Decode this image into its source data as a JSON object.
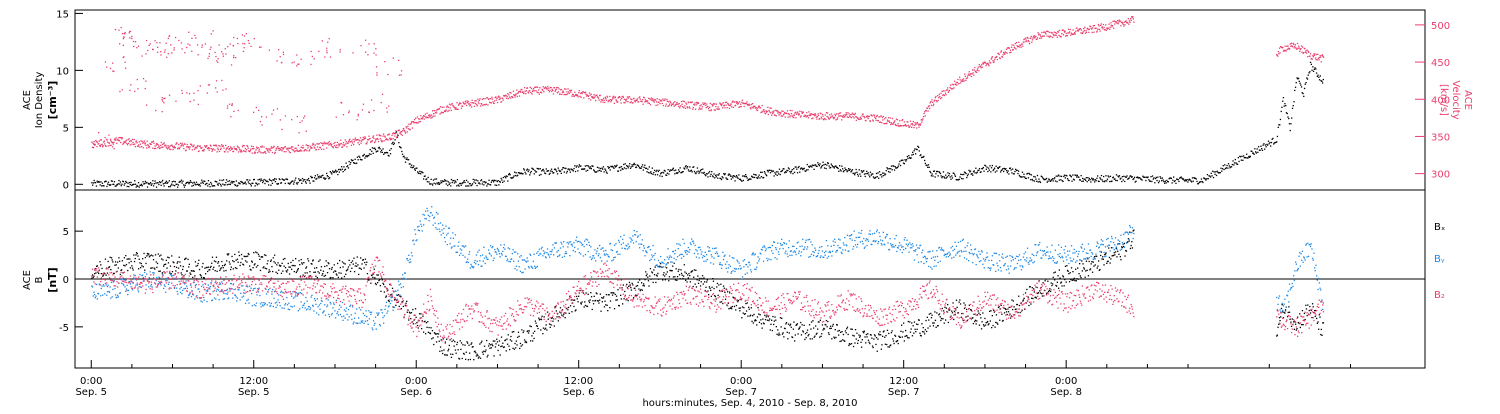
{
  "chart_data": [
    {
      "type": "scatter",
      "panel": "plasma",
      "ylabel_left": [
        "ACE",
        "Ion Density",
        "[cm⁻³]"
      ],
      "ylabel_right": [
        "ACE",
        "Velocity",
        "[km/s]"
      ],
      "ylim_left": [
        -0.5,
        15.3
      ],
      "yticks_left": [
        0,
        5,
        10,
        15
      ],
      "ylim_right": [
        278,
        520
      ],
      "yticks_right": [
        300,
        350,
        400,
        450,
        500
      ],
      "series": [
        {
          "color": "#000000",
          "axis": "left",
          "points": [
            [
              0,
              0.1
            ],
            [
              6,
              0.1
            ],
            [
              12,
              0.2
            ],
            [
              16,
              0.4
            ],
            [
              18,
              1.0
            ],
            [
              19,
              1.8
            ],
            [
              20,
              2.5
            ],
            [
              21,
              3.2
            ],
            [
              22,
              2.8
            ],
            [
              22.5,
              4.5
            ],
            [
              23,
              2.5
            ],
            [
              24,
              1.2
            ],
            [
              25,
              0.3
            ],
            [
              26,
              0.2
            ],
            [
              30,
              0.2
            ],
            [
              31,
              0.8
            ],
            [
              32,
              1.2
            ],
            [
              34,
              1.1
            ],
            [
              36,
              1.5
            ],
            [
              38,
              1.3
            ],
            [
              40,
              1.8
            ],
            [
              42,
              1.0
            ],
            [
              44,
              1.5
            ],
            [
              46,
              0.8
            ],
            [
              48,
              0.6
            ],
            [
              50,
              1.0
            ],
            [
              52,
              1.3
            ],
            [
              54,
              1.8
            ],
            [
              56,
              1.2
            ],
            [
              58,
              0.8
            ],
            [
              60,
              2.0
            ],
            [
              61,
              3.2
            ],
            [
              62,
              1.0
            ],
            [
              64,
              0.7
            ],
            [
              66,
              1.5
            ],
            [
              68,
              1.2
            ],
            [
              70,
              0.5
            ],
            [
              72,
              0.6
            ],
            [
              74,
              0.5
            ],
            [
              76,
              0.6
            ],
            [
              78,
              0.5
            ],
            [
              80,
              0.4
            ],
            [
              82,
              0.4
            ],
            [
              87.5,
              4.0
            ],
            [
              88,
              7.5
            ],
            [
              88.5,
              5.0
            ],
            [
              89,
              9.5
            ],
            [
              89.5,
              8.0
            ],
            [
              90,
              10.5
            ],
            [
              91,
              9.0
            ]
          ]
        },
        {
          "color": "#e8406e",
          "axis": "right",
          "points": [
            [
              0,
              340
            ],
            [
              2,
              345
            ],
            [
              4,
              340
            ],
            [
              6,
              338
            ],
            [
              8,
              335
            ],
            [
              10,
              335
            ],
            [
              12,
              333
            ],
            [
              14,
              333
            ],
            [
              16,
              336
            ],
            [
              18,
              340
            ],
            [
              20,
              345
            ],
            [
              21,
              348
            ],
            [
              22,
              350
            ],
            [
              23,
              357
            ],
            [
              24,
              372
            ],
            [
              26,
              388
            ],
            [
              28,
              395
            ],
            [
              30,
              400
            ],
            [
              32,
              412
            ],
            [
              34,
              413
            ],
            [
              36,
              408
            ],
            [
              38,
              400
            ],
            [
              40,
              400
            ],
            [
              42,
              397
            ],
            [
              44,
              393
            ],
            [
              46,
              390
            ],
            [
              48,
              395
            ],
            [
              50,
              385
            ],
            [
              52,
              380
            ],
            [
              54,
              378
            ],
            [
              56,
              378
            ],
            [
              58,
              375
            ],
            [
              60,
              368
            ],
            [
              61,
              365
            ],
            [
              62,
              395
            ],
            [
              64,
              425
            ],
            [
              66,
              448
            ],
            [
              68,
              470
            ],
            [
              70,
              487
            ],
            [
              72,
              490
            ],
            [
              74,
              495
            ],
            [
              76,
              503
            ],
            [
              77,
              508
            ],
            [
              87.5,
              462
            ],
            [
              88,
              470
            ],
            [
              89,
              472
            ],
            [
              90,
              460
            ],
            [
              91,
              455
            ]
          ]
        },
        {
          "color": "#e8406e",
          "axis": "right",
          "points": [
            [
              1,
              345
            ],
            [
              1.5,
              450
            ],
            [
              2,
              488
            ],
            [
              3,
              480
            ],
            [
              4,
              468
            ],
            [
              5,
              465
            ],
            [
              6,
              475
            ],
            [
              7,
              472
            ],
            [
              8,
              482
            ],
            [
              9,
              465
            ],
            [
              10,
              455
            ],
            [
              11,
              475
            ],
            [
              12,
              478
            ],
            [
              14,
              460
            ],
            [
              16,
              455
            ],
            [
              18,
              470
            ],
            [
              20,
              468
            ],
            [
              22,
              445
            ],
            [
              3,
              420
            ],
            [
              5,
              395
            ],
            [
              7,
              405
            ],
            [
              9,
              415
            ],
            [
              11,
              388
            ],
            [
              13,
              378
            ],
            [
              15,
              368
            ],
            [
              19,
              385
            ],
            [
              21,
              395
            ]
          ]
        }
      ]
    },
    {
      "type": "scatter",
      "panel": "magnetic-field",
      "ylabel": [
        "ACE",
        "B",
        "[nT]"
      ],
      "ylim": [
        -9.3,
        9.3
      ],
      "yticks": [
        -5,
        0,
        5
      ],
      "legend": [
        "Bₓ",
        "Bᵧ",
        "B₂"
      ],
      "series": [
        {
          "name": "Bx",
          "color": "#000000",
          "points": [
            [
              0,
              1.0
            ],
            [
              2,
              1.5
            ],
            [
              4,
              2.0
            ],
            [
              6,
              1.5
            ],
            [
              8,
              1.0
            ],
            [
              10,
              2.0
            ],
            [
              12,
              2.0
            ],
            [
              14,
              1.5
            ],
            [
              16,
              1.2
            ],
            [
              18,
              1.0
            ],
            [
              20,
              1.5
            ],
            [
              21,
              0.0
            ],
            [
              22,
              -1.5
            ],
            [
              23,
              -3.0
            ],
            [
              24,
              -4.0
            ],
            [
              25,
              -5.5
            ],
            [
              26,
              -7.0
            ],
            [
              28,
              -7.5
            ],
            [
              30,
              -7.0
            ],
            [
              32,
              -6.0
            ],
            [
              34,
              -4.0
            ],
            [
              36,
              -2.0
            ],
            [
              38,
              -2.5
            ],
            [
              40,
              -1.0
            ],
            [
              42,
              1.0
            ],
            [
              44,
              0.5
            ],
            [
              46,
              -1.0
            ],
            [
              48,
              -3.0
            ],
            [
              50,
              -4.5
            ],
            [
              52,
              -5.5
            ],
            [
              54,
              -5.0
            ],
            [
              56,
              -6.0
            ],
            [
              58,
              -6.5
            ],
            [
              60,
              -5.5
            ],
            [
              62,
              -4.5
            ],
            [
              64,
              -3.0
            ],
            [
              66,
              -4.5
            ],
            [
              68,
              -3.0
            ],
            [
              70,
              -1.0
            ],
            [
              72,
              0.5
            ],
            [
              74,
              1.5
            ],
            [
              76,
              3.0
            ],
            [
              77,
              4.5
            ],
            [
              87.5,
              -5.5
            ],
            [
              88,
              -3.0
            ],
            [
              89,
              -4.5
            ],
            [
              90,
              -3.0
            ],
            [
              91,
              -5.5
            ]
          ]
        },
        {
          "name": "By",
          "color": "#1e88e5",
          "points": [
            [
              0,
              -1.5
            ],
            [
              2,
              -1.0
            ],
            [
              4,
              0.0
            ],
            [
              6,
              -0.5
            ],
            [
              8,
              -1.5
            ],
            [
              10,
              -1.0
            ],
            [
              12,
              -1.8
            ],
            [
              14,
              -2.0
            ],
            [
              16,
              -2.5
            ],
            [
              18,
              -3.0
            ],
            [
              20,
              -4.0
            ],
            [
              21,
              -4.5
            ],
            [
              22,
              -3.0
            ],
            [
              23,
              0.0
            ],
            [
              24,
              5.0
            ],
            [
              25,
              7.0
            ],
            [
              26,
              5.0
            ],
            [
              28,
              2.0
            ],
            [
              30,
              3.0
            ],
            [
              32,
              1.5
            ],
            [
              34,
              3.0
            ],
            [
              36,
              3.5
            ],
            [
              38,
              2.5
            ],
            [
              40,
              4.5
            ],
            [
              42,
              2.0
            ],
            [
              44,
              3.5
            ],
            [
              46,
              2.5
            ],
            [
              48,
              1.0
            ],
            [
              50,
              3.0
            ],
            [
              52,
              3.5
            ],
            [
              54,
              3.0
            ],
            [
              56,
              4.0
            ],
            [
              58,
              4.5
            ],
            [
              60,
              3.5
            ],
            [
              62,
              2.0
            ],
            [
              64,
              3.5
            ],
            [
              66,
              2.0
            ],
            [
              68,
              1.5
            ],
            [
              70,
              3.0
            ],
            [
              72,
              2.5
            ],
            [
              74,
              3.0
            ],
            [
              76,
              4.0
            ],
            [
              77,
              5.0
            ],
            [
              87.5,
              -2.0
            ],
            [
              88,
              -3.5
            ],
            [
              89,
              1.5
            ],
            [
              90,
              3.5
            ],
            [
              91,
              -3.0
            ]
          ]
        },
        {
          "name": "Bz",
          "color": "#e8406e",
          "points": [
            [
              0,
              0.5
            ],
            [
              2,
              0.0
            ],
            [
              4,
              -0.5
            ],
            [
              6,
              0.0
            ],
            [
              8,
              -1.0
            ],
            [
              10,
              -0.5
            ],
            [
              12,
              -0.3
            ],
            [
              14,
              -1.0
            ],
            [
              16,
              -0.5
            ],
            [
              18,
              -1.5
            ],
            [
              20,
              -2.0
            ],
            [
              21,
              2.0
            ],
            [
              22,
              -1.0
            ],
            [
              23,
              -3.0
            ],
            [
              24,
              -5.0
            ],
            [
              25,
              -2.0
            ],
            [
              26,
              -6.0
            ],
            [
              28,
              -3.0
            ],
            [
              30,
              -5.0
            ],
            [
              32,
              -2.5
            ],
            [
              34,
              -4.0
            ],
            [
              36,
              -1.0
            ],
            [
              38,
              1.0
            ],
            [
              40,
              -2.0
            ],
            [
              42,
              -3.0
            ],
            [
              44,
              -1.5
            ],
            [
              46,
              -2.5
            ],
            [
              48,
              -1.0
            ],
            [
              50,
              -3.0
            ],
            [
              52,
              -2.0
            ],
            [
              54,
              -3.5
            ],
            [
              56,
              -2.0
            ],
            [
              58,
              -4.0
            ],
            [
              60,
              -3.0
            ],
            [
              62,
              -1.0
            ],
            [
              64,
              -4.5
            ],
            [
              66,
              -2.0
            ],
            [
              68,
              -3.5
            ],
            [
              70,
              -1.0
            ],
            [
              72,
              -2.5
            ],
            [
              74,
              -1.0
            ],
            [
              76,
              -2.0
            ],
            [
              77,
              -3.0
            ],
            [
              87.5,
              -3.5
            ],
            [
              88,
              -4.5
            ],
            [
              89,
              -5.0
            ],
            [
              90,
              -4.0
            ],
            [
              91,
              -2.5
            ]
          ]
        }
      ]
    }
  ],
  "x_axis": {
    "range_hours": [
      -1.2,
      98.5
    ],
    "ticks": [
      {
        "hour": 0,
        "label": "0:00",
        "sub": "Sep. 5"
      },
      {
        "hour": 12,
        "label": "12:00",
        "sub": "Sep. 5"
      },
      {
        "hour": 24,
        "label": "0:00",
        "sub": "Sep. 6"
      },
      {
        "hour": 36,
        "label": "12:00",
        "sub": "Sep. 6"
      },
      {
        "hour": 48,
        "label": "0:00",
        "sub": "Sep. 7"
      },
      {
        "hour": 60,
        "label": "12:00",
        "sub": "Sep. 7"
      },
      {
        "hour": 72,
        "label": "0:00",
        "sub": "Sep. 8"
      }
    ],
    "title": "hours:minutes, Sep.  4, 2010 - Sep.  8, 2010"
  }
}
